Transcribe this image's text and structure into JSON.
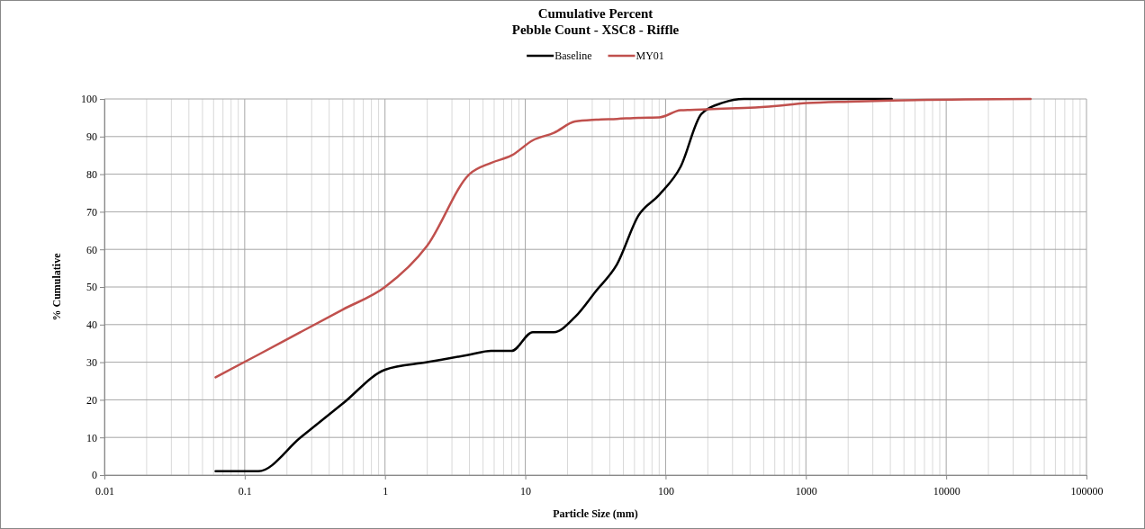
{
  "chart_data": {
    "type": "line",
    "title": "Cumulative Percent",
    "subtitle": "Pebble Count - XSC8 - Riffle",
    "xlabel": "Particle Size (mm)",
    "ylabel": "% Cumulative",
    "log": "x",
    "grid": true,
    "legend": "top",
    "marker": "none",
    "line_style": "solid",
    "xlim": [
      0.01,
      100000
    ],
    "xticks": [
      0.01,
      0.1,
      1,
      10,
      100,
      1000,
      10000,
      100000
    ],
    "ylim": [
      0,
      100
    ],
    "yticks": [
      0,
      10,
      20,
      30,
      40,
      50,
      60,
      70,
      80,
      90,
      100
    ],
    "series": [
      {
        "name": "Baseline",
        "color": "#000000",
        "x": [
          0.062,
          0.125,
          0.25,
          0.5,
          1,
          2,
          4,
          5.7,
          8,
          11.3,
          16,
          22.6,
          32,
          45,
          64,
          90,
          128,
          180,
          256,
          362,
          512,
          1024,
          2048,
          4096
        ],
        "values": [
          1,
          1,
          10,
          19,
          28,
          30,
          32,
          33,
          33,
          38,
          38,
          42,
          49,
          56,
          69,
          74.5,
          82,
          96,
          99,
          100,
          100,
          100,
          100,
          100
        ]
      },
      {
        "name": "MY01",
        "color": "#c0504d",
        "x": [
          0.062,
          0.125,
          0.25,
          0.5,
          1,
          2,
          4,
          5.7,
          8,
          11.3,
          16,
          22.6,
          32,
          45,
          64,
          90,
          128,
          180,
          256,
          362,
          512,
          1024,
          2048,
          4096,
          40000
        ],
        "values": [
          26,
          32,
          38,
          44,
          50,
          61,
          80,
          83,
          85,
          89,
          91,
          94,
          94.5,
          94.7,
          95,
          95.1,
          97,
          97.2,
          97.4,
          97.6,
          97.9,
          98.9,
          99.3,
          99.6,
          100
        ]
      }
    ]
  }
}
